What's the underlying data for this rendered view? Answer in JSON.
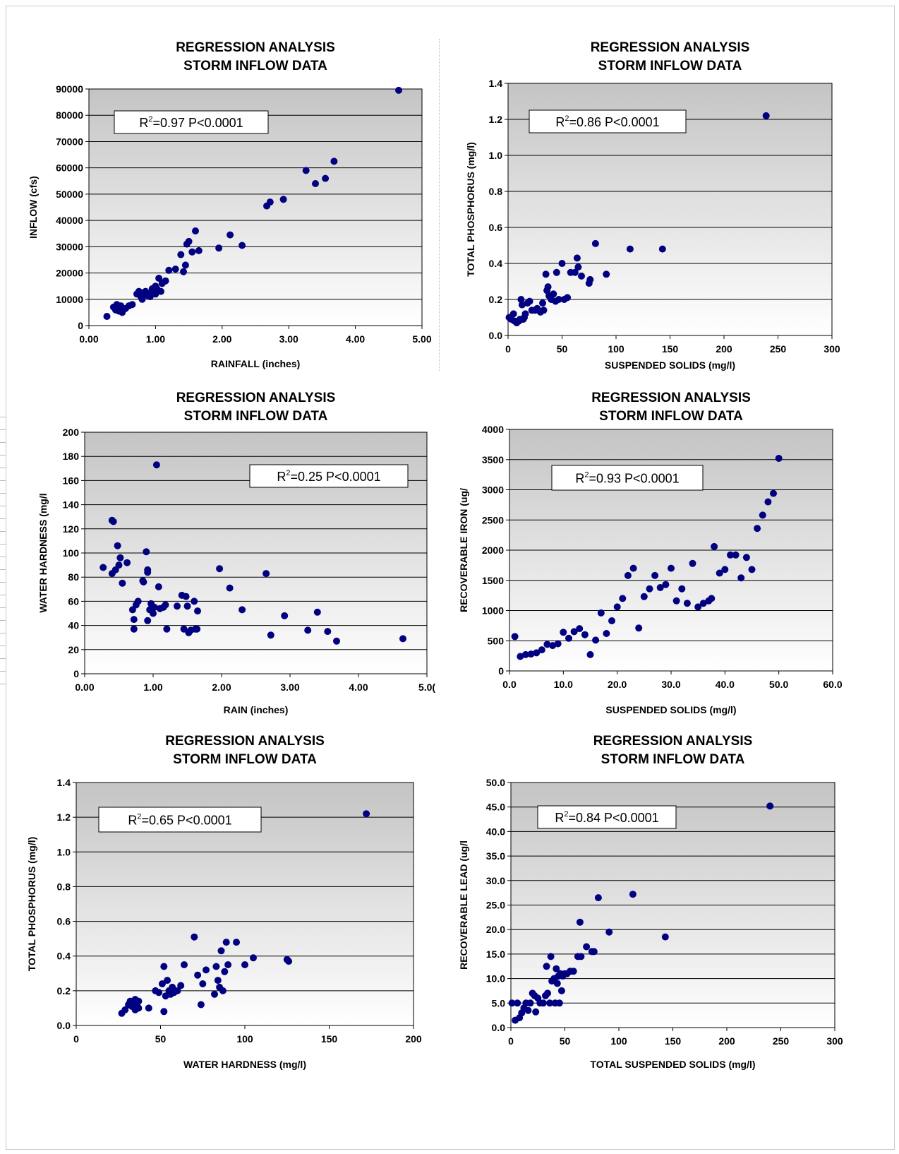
{
  "chart_data": [
    {
      "type": "scatter",
      "title": [
        "REGRESSION  ANALYSIS",
        "STORM INFLOW DATA"
      ],
      "annotation": "R2=0.97 P<0.0001",
      "annotation_parts": {
        "r": "R",
        "sup": "2",
        "rest": "=0.97 P<0.0001"
      },
      "xlabel": "RAINFALL (inches)",
      "ylabel": "INFLOW (cfs)",
      "xlim": [
        0,
        5
      ],
      "ylim": [
        0,
        90000
      ],
      "xticks": [
        "0.00",
        "1.00",
        "2.00",
        "3.00",
        "4.00",
        "5.00"
      ],
      "yticks": [
        "0",
        "10000",
        "20000",
        "30000",
        "40000",
        "50000",
        "60000",
        "70000",
        "80000",
        "90000"
      ],
      "grid": true,
      "legend": "none",
      "marker_color": "#000080",
      "points": [
        [
          0.27,
          3500
        ],
        [
          0.37,
          7000
        ],
        [
          0.4,
          6000
        ],
        [
          0.42,
          8000
        ],
        [
          0.45,
          5500
        ],
        [
          0.48,
          7500
        ],
        [
          0.5,
          6000
        ],
        [
          0.5,
          5000
        ],
        [
          0.55,
          6500
        ],
        [
          0.6,
          7500
        ],
        [
          0.65,
          8000
        ],
        [
          0.72,
          12000
        ],
        [
          0.75,
          13000
        ],
        [
          0.78,
          11000
        ],
        [
          0.8,
          10000
        ],
        [
          0.82,
          12500
        ],
        [
          0.85,
          13000
        ],
        [
          0.88,
          11500
        ],
        [
          0.9,
          12000
        ],
        [
          0.92,
          11000
        ],
        [
          0.95,
          14000
        ],
        [
          0.97,
          13500
        ],
        [
          1.0,
          12000
        ],
        [
          1.0,
          15000
        ],
        [
          1.02,
          14000
        ],
        [
          1.05,
          18000
        ],
        [
          1.08,
          13000
        ],
        [
          1.1,
          16000
        ],
        [
          1.15,
          17000
        ],
        [
          1.2,
          21000
        ],
        [
          1.3,
          21500
        ],
        [
          1.38,
          27000
        ],
        [
          1.42,
          20500
        ],
        [
          1.45,
          23000
        ],
        [
          1.47,
          31000
        ],
        [
          1.5,
          32000
        ],
        [
          1.55,
          28000
        ],
        [
          1.6,
          36000
        ],
        [
          1.65,
          28500
        ],
        [
          1.95,
          29500
        ],
        [
          2.12,
          34500
        ],
        [
          2.3,
          30500
        ],
        [
          2.67,
          45500
        ],
        [
          2.72,
          47000
        ],
        [
          2.92,
          48000
        ],
        [
          3.26,
          59000
        ],
        [
          3.4,
          54000
        ],
        [
          3.55,
          56000
        ],
        [
          3.68,
          62500
        ],
        [
          4.65,
          89500
        ]
      ]
    },
    {
      "type": "scatter",
      "title": [
        "REGRESSION ANALYSIS",
        "STORM INFLOW DATA"
      ],
      "annotation": "R2=0.86 P<0.0001",
      "annotation_parts": {
        "r": "R",
        "sup": "2",
        "rest": "=0.86 P<0.0001"
      },
      "xlabel": "SUSPENDED SOLIDS (mg/l)",
      "ylabel": "TOTAL PHOSPHORUS  (mg/l)",
      "xlim": [
        0,
        300
      ],
      "ylim": [
        0,
        1.4
      ],
      "xticks": [
        "0",
        "50",
        "100",
        "150",
        "200",
        "250",
        "300"
      ],
      "yticks": [
        "0.0",
        "0.2",
        "0.4",
        "0.6",
        "0.8",
        "1.0",
        "1.2",
        "1.4"
      ],
      "grid": true,
      "legend": "none",
      "marker_color": "#000080",
      "points": [
        [
          1,
          0.1
        ],
        [
          3,
          0.09
        ],
        [
          5,
          0.12
        ],
        [
          6,
          0.08
        ],
        [
          8,
          0.07
        ],
        [
          10,
          0.08
        ],
        [
          11,
          0.09
        ],
        [
          12,
          0.2
        ],
        [
          13,
          0.17
        ],
        [
          14,
          0.09
        ],
        [
          15,
          0.1
        ],
        [
          16,
          0.12
        ],
        [
          18,
          0.18
        ],
        [
          20,
          0.19
        ],
        [
          22,
          0.14
        ],
        [
          25,
          0.14
        ],
        [
          27,
          0.15
        ],
        [
          30,
          0.13
        ],
        [
          32,
          0.18
        ],
        [
          33,
          0.14
        ],
        [
          35,
          0.34
        ],
        [
          36,
          0.25
        ],
        [
          37,
          0.27
        ],
        [
          38,
          0.22
        ],
        [
          40,
          0.2
        ],
        [
          42,
          0.23
        ],
        [
          44,
          0.19
        ],
        [
          45,
          0.35
        ],
        [
          47,
          0.2
        ],
        [
          50,
          0.4
        ],
        [
          52,
          0.2
        ],
        [
          55,
          0.21
        ],
        [
          58,
          0.35
        ],
        [
          62,
          0.35
        ],
        [
          64,
          0.43
        ],
        [
          65,
          0.38
        ],
        [
          68,
          0.33
        ],
        [
          75,
          0.29
        ],
        [
          76,
          0.31
        ],
        [
          81,
          0.51
        ],
        [
          91,
          0.34
        ],
        [
          113,
          0.48
        ],
        [
          143,
          0.48
        ],
        [
          239,
          1.22
        ]
      ]
    },
    {
      "type": "scatter",
      "title": [
        "REGRESSION ANALYSIS",
        "STORM INFLOW DATA"
      ],
      "annotation": "R2=0.25 P<0.0001",
      "annotation_parts": {
        "r": "R",
        "sup": "2",
        "rest": "=0.25 P<0.0001"
      },
      "xlabel": "RAIN (inches)",
      "ylabel": "WATER HARDNESS (mg/l",
      "xlim": [
        0,
        5
      ],
      "ylim": [
        0,
        200
      ],
      "xticks": [
        "0.00",
        "1.00",
        "2.00",
        "3.00",
        "4.00",
        "5.0("
      ],
      "yticks": [
        "0",
        "20",
        "40",
        "60",
        "80",
        "100",
        "120",
        "140",
        "160",
        "180",
        "200"
      ],
      "grid": true,
      "legend": "none",
      "marker_color": "#000080",
      "points": [
        [
          0.27,
          88
        ],
        [
          0.4,
          127
        ],
        [
          0.42,
          126
        ],
        [
          0.4,
          83
        ],
        [
          0.45,
          86
        ],
        [
          0.48,
          106
        ],
        [
          0.5,
          90
        ],
        [
          0.52,
          96
        ],
        [
          0.55,
          75
        ],
        [
          0.62,
          92
        ],
        [
          0.7,
          53
        ],
        [
          0.72,
          45
        ],
        [
          0.72,
          37
        ],
        [
          0.75,
          57
        ],
        [
          0.78,
          60
        ],
        [
          0.85,
          77
        ],
        [
          0.86,
          76
        ],
        [
          0.9,
          101
        ],
        [
          0.92,
          86
        ],
        [
          0.92,
          84
        ],
        [
          0.92,
          44
        ],
        [
          0.95,
          53
        ],
        [
          0.97,
          58
        ],
        [
          1.0,
          50
        ],
        [
          1.02,
          55
        ],
        [
          1.05,
          173
        ],
        [
          1.08,
          72
        ],
        [
          1.1,
          54
        ],
        [
          1.15,
          55
        ],
        [
          1.18,
          57
        ],
        [
          1.2,
          37
        ],
        [
          1.35,
          56
        ],
        [
          1.42,
          65
        ],
        [
          1.45,
          37
        ],
        [
          1.48,
          64
        ],
        [
          1.5,
          56
        ],
        [
          1.52,
          34
        ],
        [
          1.55,
          36
        ],
        [
          1.6,
          60
        ],
        [
          1.62,
          37
        ],
        [
          1.65,
          52
        ],
        [
          1.64,
          37
        ],
        [
          1.97,
          87
        ],
        [
          2.12,
          71
        ],
        [
          2.3,
          53
        ],
        [
          2.65,
          83
        ],
        [
          2.72,
          32
        ],
        [
          2.92,
          48
        ],
        [
          3.26,
          36
        ],
        [
          3.4,
          51
        ],
        [
          3.55,
          35
        ],
        [
          3.68,
          27
        ],
        [
          4.65,
          29
        ]
      ]
    },
    {
      "type": "scatter",
      "title": [
        "REGRESSION ANALYSIS",
        "STORM INFLOW DATA"
      ],
      "annotation": "R2=0.93 P<0.0001",
      "annotation_parts": {
        "r": "R",
        "sup": "2",
        "rest": "=0.93 P<0.0001"
      },
      "xlabel": "SUSPENDED SOLIDS (mg/l)",
      "ylabel": "RECOVERABLE IRON (ug/",
      "xlim": [
        0,
        60
      ],
      "ylim": [
        0,
        4000
      ],
      "xticks": [
        "0.0",
        "10.0",
        "20.0",
        "30.0",
        "40.0",
        "50.0",
        "60.0"
      ],
      "yticks": [
        "0",
        "500",
        "1000",
        "1500",
        "2000",
        "2500",
        "3000",
        "3500",
        "4000"
      ],
      "grid": true,
      "legend": "none",
      "marker_color": "#000080",
      "points": [
        [
          1,
          570
        ],
        [
          2,
          240
        ],
        [
          3,
          270
        ],
        [
          4,
          280
        ],
        [
          5,
          300
        ],
        [
          6,
          350
        ],
        [
          7,
          440
        ],
        [
          8,
          420
        ],
        [
          9,
          450
        ],
        [
          10,
          640
        ],
        [
          11,
          540
        ],
        [
          12,
          650
        ],
        [
          13,
          700
        ],
        [
          14,
          600
        ],
        [
          15,
          270
        ],
        [
          16,
          510
        ],
        [
          17,
          960
        ],
        [
          18,
          620
        ],
        [
          19,
          830
        ],
        [
          20,
          1060
        ],
        [
          21,
          1200
        ],
        [
          22,
          1580
        ],
        [
          23,
          1700
        ],
        [
          24,
          710
        ],
        [
          25,
          1230
        ],
        [
          26,
          1360
        ],
        [
          27,
          1580
        ],
        [
          28,
          1380
        ],
        [
          29,
          1430
        ],
        [
          30,
          1700
        ],
        [
          31,
          1160
        ],
        [
          32,
          1360
        ],
        [
          33,
          1120
        ],
        [
          34,
          1780
        ],
        [
          35,
          1060
        ],
        [
          36,
          1120
        ],
        [
          37,
          1160
        ],
        [
          37.5,
          1200
        ],
        [
          38,
          2060
        ],
        [
          39,
          1620
        ],
        [
          40,
          1680
        ],
        [
          41,
          1920
        ],
        [
          42,
          1920
        ],
        [
          43,
          1540
        ],
        [
          44,
          1880
        ],
        [
          45,
          1680
        ],
        [
          46,
          2360
        ],
        [
          47,
          2580
        ],
        [
          48,
          2800
        ],
        [
          49,
          2940
        ],
        [
          50,
          3520
        ]
      ]
    },
    {
      "type": "scatter",
      "title": [
        "REGRESSION ANALYSIS",
        "STORM INFLOW DATA"
      ],
      "annotation": "R2=0.65 P<0.0001",
      "annotation_parts": {
        "r": "R",
        "sup": "2",
        "rest": "=0.65 P<0.0001"
      },
      "xlabel": "WATER HARDNESS (mg/l)",
      "ylabel": "TOTAL PHOSPHORUS  (mg/l)",
      "xlim": [
        0,
        200
      ],
      "ylim": [
        0,
        1.4
      ],
      "xticks": [
        "0",
        "50",
        "100",
        "150",
        "200"
      ],
      "yticks": [
        "0.0",
        "0.2",
        "0.4",
        "0.6",
        "0.8",
        "1.0",
        "1.2",
        "1.4"
      ],
      "grid": true,
      "legend": "none",
      "marker_color": "#000080",
      "points": [
        [
          27,
          0.07
        ],
        [
          29,
          0.09
        ],
        [
          31,
          0.12
        ],
        [
          32,
          0.14
        ],
        [
          33,
          0.11
        ],
        [
          34,
          0.13
        ],
        [
          35,
          0.15
        ],
        [
          35,
          0.09
        ],
        [
          36,
          0.12
        ],
        [
          37,
          0.14
        ],
        [
          37,
          0.1
        ],
        [
          43,
          0.1
        ],
        [
          47,
          0.2
        ],
        [
          49,
          0.19
        ],
        [
          51,
          0.24
        ],
        [
          52,
          0.34
        ],
        [
          52,
          0.08
        ],
        [
          53,
          0.17
        ],
        [
          54,
          0.26
        ],
        [
          55,
          0.2
        ],
        [
          56,
          0.18
        ],
        [
          57,
          0.22
        ],
        [
          58,
          0.19
        ],
        [
          60,
          0.2
        ],
        [
          62,
          0.23
        ],
        [
          64,
          0.35
        ],
        [
          70,
          0.51
        ],
        [
          72,
          0.29
        ],
        [
          74,
          0.12
        ],
        [
          75,
          0.24
        ],
        [
          77,
          0.32
        ],
        [
          82,
          0.18
        ],
        [
          83,
          0.34
        ],
        [
          84,
          0.26
        ],
        [
          85,
          0.22
        ],
        [
          86,
          0.43
        ],
        [
          87,
          0.2
        ],
        [
          88,
          0.31
        ],
        [
          89,
          0.48
        ],
        [
          90,
          0.35
        ],
        [
          95,
          0.48
        ],
        [
          100,
          0.35
        ],
        [
          105,
          0.39
        ],
        [
          125,
          0.38
        ],
        [
          126,
          0.37
        ],
        [
          172,
          1.22
        ]
      ]
    },
    {
      "type": "scatter",
      "title": [
        "REGRESSION ANALYSIS",
        "STORM INFLOW DATA"
      ],
      "annotation": "R2=0.84 P<0.0001",
      "annotation_parts": {
        "r": "R",
        "sup": "2",
        "rest": "=0.84 P<0.0001"
      },
      "xlabel": "TOTAL SUSPENDED SOLIDS (mg/l)",
      "ylabel": "RECOVERABLE LEAD  (ug/l",
      "xlim": [
        0,
        300
      ],
      "ylim": [
        0,
        50
      ],
      "xticks": [
        "0",
        "50",
        "100",
        "150",
        "200",
        "250",
        "300"
      ],
      "yticks": [
        "0.0",
        "5.0",
        "10.0",
        "15.0",
        "20.0",
        "25.0",
        "30.0",
        "35.0",
        "40.0",
        "45.0",
        "50.0"
      ],
      "grid": true,
      "legend": "none",
      "marker_color": "#000080",
      "points": [
        [
          1,
          5
        ],
        [
          4,
          1.5
        ],
        [
          6,
          5
        ],
        [
          8,
          2
        ],
        [
          10,
          3
        ],
        [
          12,
          4
        ],
        [
          14,
          5
        ],
        [
          16,
          3.5
        ],
        [
          18,
          5
        ],
        [
          20,
          7
        ],
        [
          22,
          6.5
        ],
        [
          23,
          3.2
        ],
        [
          25,
          6
        ],
        [
          27,
          5
        ],
        [
          30,
          5
        ],
        [
          32,
          6.5
        ],
        [
          33,
          12.5
        ],
        [
          34,
          7
        ],
        [
          36,
          5
        ],
        [
          37,
          14.5
        ],
        [
          38,
          9.5
        ],
        [
          40,
          10
        ],
        [
          41,
          5
        ],
        [
          42,
          12
        ],
        [
          43,
          9
        ],
        [
          44,
          10.5
        ],
        [
          45,
          5
        ],
        [
          46,
          11
        ],
        [
          47,
          7.5
        ],
        [
          48,
          10.5
        ],
        [
          50,
          11
        ],
        [
          52,
          11
        ],
        [
          55,
          11.5
        ],
        [
          58,
          11.5
        ],
        [
          62,
          14.5
        ],
        [
          64,
          21.5
        ],
        [
          65,
          14.5
        ],
        [
          70,
          16.5
        ],
        [
          75,
          15.5
        ],
        [
          77,
          15.5
        ],
        [
          81,
          26.5
        ],
        [
          91,
          19.5
        ],
        [
          113,
          27.2
        ],
        [
          143,
          18.5
        ],
        [
          240,
          45.2
        ]
      ]
    }
  ]
}
